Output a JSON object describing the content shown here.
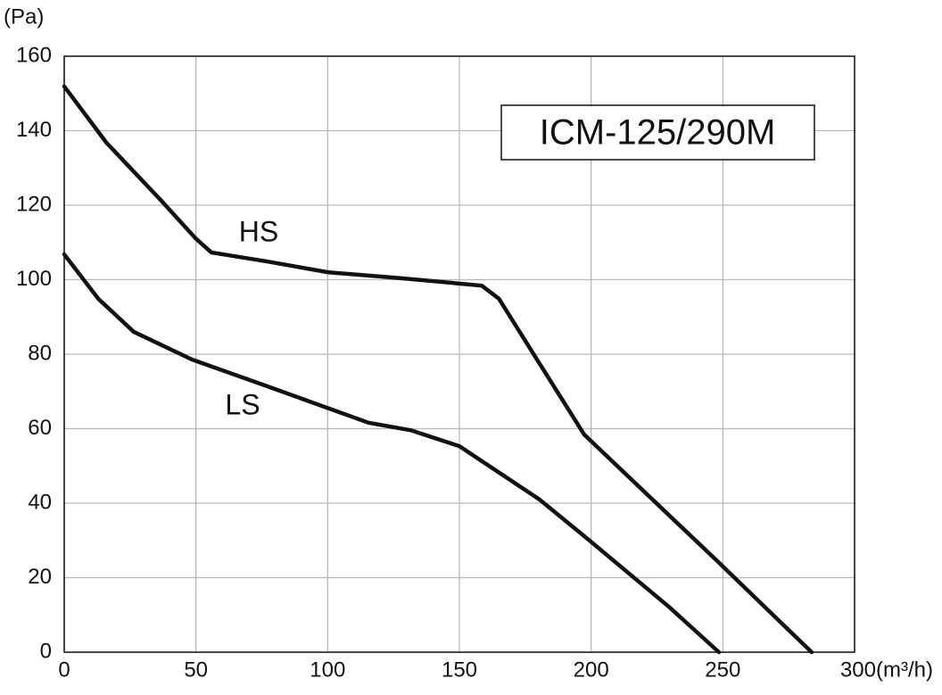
{
  "chart_data": {
    "type": "line",
    "title": "ICM-125/290M",
    "y_label": "(Pa)",
    "x_label": "(m³/h)",
    "xlim": [
      0,
      300
    ],
    "xticks": [
      0,
      50,
      100,
      150,
      200,
      250,
      300
    ],
    "ylim": [
      0,
      160
    ],
    "yticks": [
      0,
      20,
      40,
      60,
      80,
      100,
      120,
      140,
      160
    ],
    "grid": true,
    "series": [
      {
        "name": "HS",
        "color": "#111111",
        "x": [
          0,
          16,
          36.6,
          50,
          55.9,
          77,
          100,
          128,
          158.5,
          165,
          178.8,
          197.4,
          249,
          283.7
        ],
        "values": [
          151.9,
          136.8,
          121.4,
          111,
          107.3,
          104.9,
          102,
          100.4,
          98.4,
          94.9,
          79.3,
          58.4,
          23.7,
          0
        ]
      },
      {
        "name": "LS",
        "color": "#111111",
        "x": [
          0,
          12.9,
          26.4,
          48.4,
          77,
          115.5,
          131.4,
          150,
          180.4,
          199,
          229.5,
          248.5
        ],
        "values": [
          106.8,
          94.9,
          86,
          78.6,
          71.4,
          61.6,
          59.6,
          55.3,
          41,
          30.2,
          12.2,
          0
        ]
      }
    ]
  }
}
